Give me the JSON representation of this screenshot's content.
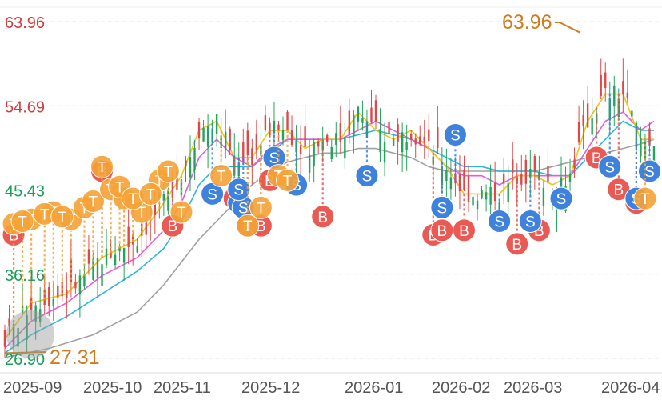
{
  "chart_data": {
    "type": "candlestick",
    "y_axis": {
      "min": 26.9,
      "max": 63.96,
      "tick_labels": [
        "63.96",
        "54.69",
        "45.43",
        "36.16",
        "26.90"
      ],
      "tick_values": [
        63.96,
        54.69,
        45.43,
        36.16,
        26.9
      ],
      "tick_colors": [
        "#d23c3c",
        "#d23c3c",
        "#19a05a",
        "#19a05a",
        "#19a05a"
      ]
    },
    "x_axis": {
      "labels": [
        "2025-09",
        "2025-10",
        "2025-11",
        "2025-12",
        "2026-01",
        "2026-02",
        "2026-03",
        "2026-04"
      ]
    },
    "grid": true,
    "annotations": {
      "max_label": "63.96",
      "min_label": "27.31",
      "max_value": 63.96,
      "min_value": 27.31,
      "color": "#d07b1e"
    },
    "colors": {
      "up": "#e04848",
      "down": "#23a45a",
      "ma_short": "#f0c419",
      "ma_mid": "#e85ad8",
      "ma_long": "#2fb4dc",
      "ma_longest": "#a0a0a0",
      "buy": "#ea5a55",
      "sell": "#3f82dc",
      "trade": "#f5a236"
    },
    "moving_averages": {
      "ma_short": [
        [
          0,
          29
        ],
        [
          6,
          33
        ],
        [
          14,
          34
        ],
        [
          22,
          38
        ],
        [
          30,
          40
        ],
        [
          36,
          44
        ],
        [
          40,
          47
        ],
        [
          44,
          52
        ],
        [
          48,
          53
        ],
        [
          52,
          49
        ],
        [
          56,
          49
        ],
        [
          60,
          52
        ],
        [
          64,
          52
        ],
        [
          68,
          50
        ],
        [
          72,
          51
        ],
        [
          76,
          51
        ],
        [
          80,
          54
        ],
        [
          84,
          52
        ],
        [
          88,
          51
        ],
        [
          92,
          52
        ],
        [
          96,
          50
        ],
        [
          100,
          48
        ],
        [
          104,
          45
        ],
        [
          108,
          45
        ],
        [
          112,
          45
        ],
        [
          116,
          47
        ],
        [
          120,
          47
        ],
        [
          124,
          46
        ],
        [
          128,
          47
        ],
        [
          132,
          53
        ],
        [
          136,
          56
        ],
        [
          140,
          56
        ],
        [
          144,
          51
        ],
        [
          147,
          51
        ]
      ],
      "ma_mid": [
        [
          0,
          28
        ],
        [
          6,
          31
        ],
        [
          14,
          33
        ],
        [
          22,
          36
        ],
        [
          30,
          38
        ],
        [
          36,
          41
        ],
        [
          40,
          44
        ],
        [
          44,
          49
        ],
        [
          48,
          51
        ],
        [
          52,
          49
        ],
        [
          56,
          48
        ],
        [
          60,
          50
        ],
        [
          64,
          51
        ],
        [
          68,
          51
        ],
        [
          72,
          51
        ],
        [
          76,
          51
        ],
        [
          80,
          52
        ],
        [
          84,
          53
        ],
        [
          88,
          52
        ],
        [
          92,
          51
        ],
        [
          96,
          50
        ],
        [
          100,
          48
        ],
        [
          104,
          47
        ],
        [
          108,
          47
        ],
        [
          112,
          46
        ],
        [
          116,
          47
        ],
        [
          120,
          47
        ],
        [
          124,
          47
        ],
        [
          128,
          47
        ],
        [
          132,
          50
        ],
        [
          136,
          53
        ],
        [
          140,
          54
        ],
        [
          144,
          52
        ],
        [
          147,
          53
        ]
      ],
      "ma_long": [
        [
          0,
          27.5
        ],
        [
          6,
          29.5
        ],
        [
          14,
          31.5
        ],
        [
          22,
          34
        ],
        [
          30,
          36.5
        ],
        [
          36,
          39
        ],
        [
          40,
          42
        ],
        [
          44,
          46
        ],
        [
          48,
          48
        ],
        [
          52,
          48
        ],
        [
          56,
          48
        ],
        [
          60,
          49.5
        ],
        [
          64,
          51
        ],
        [
          68,
          51
        ],
        [
          72,
          51
        ],
        [
          76,
          51
        ],
        [
          80,
          51.5
        ],
        [
          84,
          52
        ],
        [
          88,
          51.5
        ],
        [
          92,
          51
        ],
        [
          96,
          50
        ],
        [
          100,
          49
        ],
        [
          104,
          48
        ],
        [
          108,
          48
        ],
        [
          112,
          47.5
        ],
        [
          116,
          47.5
        ],
        [
          120,
          47.5
        ],
        [
          124,
          47
        ],
        [
          128,
          47
        ],
        [
          132,
          49
        ],
        [
          136,
          51
        ],
        [
          140,
          53
        ],
        [
          144,
          52
        ],
        [
          147,
          52
        ]
      ],
      "ma_longest": [
        [
          0,
          27
        ],
        [
          10,
          28
        ],
        [
          20,
          29.5
        ],
        [
          30,
          32
        ],
        [
          36,
          35
        ],
        [
          40,
          37.5
        ],
        [
          44,
          40
        ],
        [
          48,
          42
        ],
        [
          52,
          44
        ],
        [
          56,
          46
        ],
        [
          60,
          47.5
        ],
        [
          64,
          48.5
        ],
        [
          68,
          49
        ],
        [
          72,
          49.5
        ],
        [
          76,
          49.5
        ],
        [
          80,
          50
        ],
        [
          84,
          50
        ],
        [
          88,
          49.5
        ],
        [
          92,
          49
        ],
        [
          96,
          48
        ],
        [
          100,
          47.5
        ],
        [
          104,
          47.5
        ],
        [
          108,
          47.5
        ],
        [
          112,
          47.5
        ],
        [
          116,
          47.5
        ],
        [
          120,
          47.5
        ],
        [
          124,
          48
        ],
        [
          128,
          48.5
        ],
        [
          132,
          49
        ],
        [
          136,
          49.5
        ],
        [
          140,
          50
        ],
        [
          144,
          50.5
        ],
        [
          147,
          51
        ]
      ]
    },
    "markers": [
      {
        "type": "buy",
        "label": "B",
        "i": 2,
        "value": 40.5
      },
      {
        "type": "buy",
        "label": "B",
        "i": 22,
        "value": 47.5
      },
      {
        "type": "buy",
        "label": "B",
        "i": 38,
        "value": 41.5
      },
      {
        "type": "buy",
        "label": "B",
        "i": 52,
        "value": 44.5
      },
      {
        "type": "buy",
        "label": "B",
        "i": 55,
        "value": 41.5
      },
      {
        "type": "buy",
        "label": "B",
        "i": 58,
        "value": 41.5
      },
      {
        "type": "buy",
        "label": "B",
        "i": 60,
        "value": 46.5
      },
      {
        "type": "buy",
        "label": "B",
        "i": 72,
        "value": 42.5
      },
      {
        "type": "buy",
        "label": "B",
        "i": 97,
        "value": 40.5
      },
      {
        "type": "buy",
        "label": "B",
        "i": 99,
        "value": 41.0
      },
      {
        "type": "buy",
        "label": "B",
        "i": 104,
        "value": 41.0
      },
      {
        "type": "buy",
        "label": "B",
        "i": 116,
        "value": 39.5
      },
      {
        "type": "buy",
        "label": "B",
        "i": 121,
        "value": 41.0
      },
      {
        "type": "buy",
        "label": "B",
        "i": 134,
        "value": 49.0
      },
      {
        "type": "buy",
        "label": "B",
        "i": 139,
        "value": 45.5
      },
      {
        "type": "buy",
        "label": "B",
        "i": 143,
        "value": 44.0
      },
      {
        "type": "sell",
        "label": "S",
        "i": 47,
        "value": 45.0
      },
      {
        "type": "sell",
        "label": "S",
        "i": 53,
        "value": 44.0
      },
      {
        "type": "sell",
        "label": "S",
        "i": 54,
        "value": 43.5
      },
      {
        "type": "sell",
        "label": "S",
        "i": 61,
        "value": 49.0
      },
      {
        "type": "sell",
        "label": "S",
        "i": 66,
        "value": 46.0
      },
      {
        "type": "sell",
        "label": "S",
        "i": 82,
        "value": 47.0
      },
      {
        "type": "sell",
        "label": "S",
        "i": 99,
        "value": 43.5
      },
      {
        "type": "sell",
        "label": "S",
        "i": 102,
        "value": 51.5
      },
      {
        "type": "sell",
        "label": "S",
        "i": 112,
        "value": 42.0
      },
      {
        "type": "sell",
        "label": "S",
        "i": 119,
        "value": 42.0
      },
      {
        "type": "sell",
        "label": "S",
        "i": 126,
        "value": 44.5
      },
      {
        "type": "sell",
        "label": "S",
        "i": 137,
        "value": 48.0
      },
      {
        "type": "sell",
        "label": "S",
        "i": 143,
        "value": 44.5
      },
      {
        "type": "sell",
        "label": "S",
        "i": 146,
        "value": 47.5
      },
      {
        "type": "sell",
        "label": "S",
        "i": 53,
        "value": 45.5
      },
      {
        "type": "trade",
        "label": "T",
        "i": 2,
        "value": 41.7
      },
      {
        "type": "trade",
        "label": "T",
        "i": 6,
        "value": 42.2
      },
      {
        "type": "trade",
        "label": "T",
        "i": 11,
        "value": 43.0
      },
      {
        "type": "trade",
        "label": "T",
        "i": 15,
        "value": 42.2
      },
      {
        "type": "trade",
        "label": "T",
        "i": 18,
        "value": 43.5
      },
      {
        "type": "trade",
        "label": "T",
        "i": 20,
        "value": 44.2
      },
      {
        "type": "trade",
        "label": "T",
        "i": 22,
        "value": 48.0
      },
      {
        "type": "trade",
        "label": "T",
        "i": 24,
        "value": 45.5
      },
      {
        "type": "trade",
        "label": "T",
        "i": 27,
        "value": 44.5
      },
      {
        "type": "trade",
        "label": "T",
        "i": 31,
        "value": 43.0
      },
      {
        "type": "trade",
        "label": "T",
        "i": 35,
        "value": 46.5
      },
      {
        "type": "trade",
        "label": "T",
        "i": 37,
        "value": 47.5
      },
      {
        "type": "trade",
        "label": "T",
        "i": 40,
        "value": 43.0
      },
      {
        "type": "trade",
        "label": "T",
        "i": 49,
        "value": 47.0
      },
      {
        "type": "trade",
        "label": "T",
        "i": 55,
        "value": 41.5
      },
      {
        "type": "trade",
        "label": "T",
        "i": 58,
        "value": 43.5
      },
      {
        "type": "trade",
        "label": "T",
        "i": 62,
        "value": 47.0
      },
      {
        "type": "trade",
        "label": "T",
        "i": 64,
        "value": 46.5
      },
      {
        "type": "trade",
        "label": "T",
        "i": 145,
        "value": 44.5
      },
      {
        "type": "trade",
        "label": "T",
        "i": 4,
        "value": 42.0
      },
      {
        "type": "trade",
        "label": "T",
        "i": 9,
        "value": 42.8
      },
      {
        "type": "trade",
        "label": "T",
        "i": 13,
        "value": 42.5
      },
      {
        "type": "trade",
        "label": "T",
        "i": 26,
        "value": 45.8
      },
      {
        "type": "trade",
        "label": "T",
        "i": 29,
        "value": 44.5
      },
      {
        "type": "trade",
        "label": "T",
        "i": 33,
        "value": 45.0
      }
    ]
  }
}
